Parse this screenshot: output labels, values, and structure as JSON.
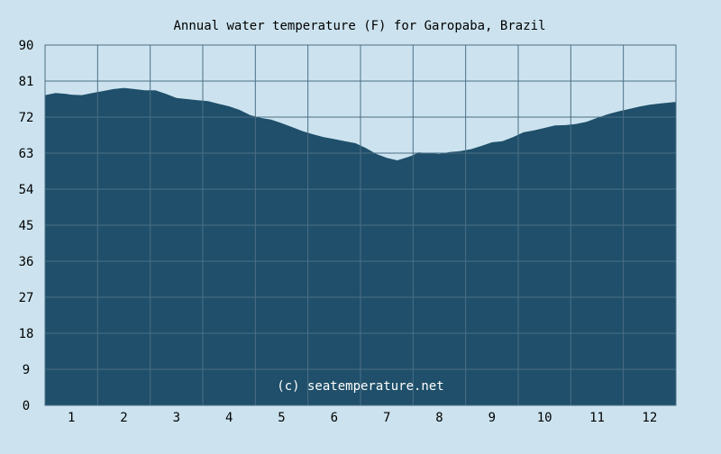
{
  "chart_data": {
    "type": "area",
    "title": "Annual water temperature (F) for Garopaba, Brazil",
    "xlabel": "",
    "ylabel": "",
    "watermark": "(c) seatemperature.net",
    "x_ticks": [
      "1",
      "2",
      "3",
      "4",
      "5",
      "6",
      "7",
      "8",
      "9",
      "10",
      "11",
      "12"
    ],
    "y_ticks": [
      0,
      9,
      18,
      27,
      36,
      45,
      54,
      63,
      72,
      81,
      90
    ],
    "xlim": [
      0.5,
      12.5
    ],
    "ylim": [
      0,
      90
    ],
    "grid": true,
    "colors": {
      "background": "#cce3ef",
      "area_fill": "#1f4f6a",
      "grid": "#4d6f86",
      "text": "#000000",
      "watermark": "#ffffff"
    },
    "series": [
      {
        "x": [
          0.5,
          0.7,
          0.9,
          1.0,
          1.2,
          1.4,
          1.6,
          1.8,
          2.0,
          2.2,
          2.4,
          2.6,
          2.8,
          3.0,
          3.2,
          3.4,
          3.6,
          3.8,
          4.0,
          4.2,
          4.4,
          4.6,
          4.8,
          5.0,
          5.2,
          5.4,
          5.6,
          5.8,
          6.0,
          6.2,
          6.4,
          6.6,
          6.8,
          7.0,
          7.2,
          7.4,
          7.5,
          7.6,
          7.8,
          8.0,
          8.2,
          8.4,
          8.6,
          8.8,
          9.0,
          9.2,
          9.4,
          9.6,
          9.8,
          10.0,
          10.2,
          10.4,
          10.6,
          10.8,
          11.0,
          11.2,
          11.4,
          11.6,
          11.8,
          12.0,
          12.2,
          12.5
        ],
        "values": [
          77.5,
          78.0,
          77.8,
          77.6,
          77.5,
          78.0,
          78.5,
          79.0,
          79.3,
          79.0,
          78.7,
          78.7,
          77.8,
          76.8,
          76.5,
          76.2,
          76.0,
          75.3,
          74.7,
          73.8,
          72.5,
          71.8,
          71.4,
          70.5,
          69.5,
          68.5,
          67.7,
          67.0,
          66.5,
          66.0,
          65.5,
          64.3,
          62.8,
          61.8,
          61.2,
          62.0,
          62.5,
          63.2,
          63.0,
          62.8,
          63.3,
          63.5,
          64.0,
          64.8,
          65.7,
          66.0,
          67.0,
          68.2,
          68.7,
          69.3,
          69.9,
          70.0,
          70.3,
          70.8,
          71.8,
          72.7,
          73.4,
          74.0,
          74.6,
          75.1,
          75.4,
          75.8
        ]
      }
    ]
  }
}
